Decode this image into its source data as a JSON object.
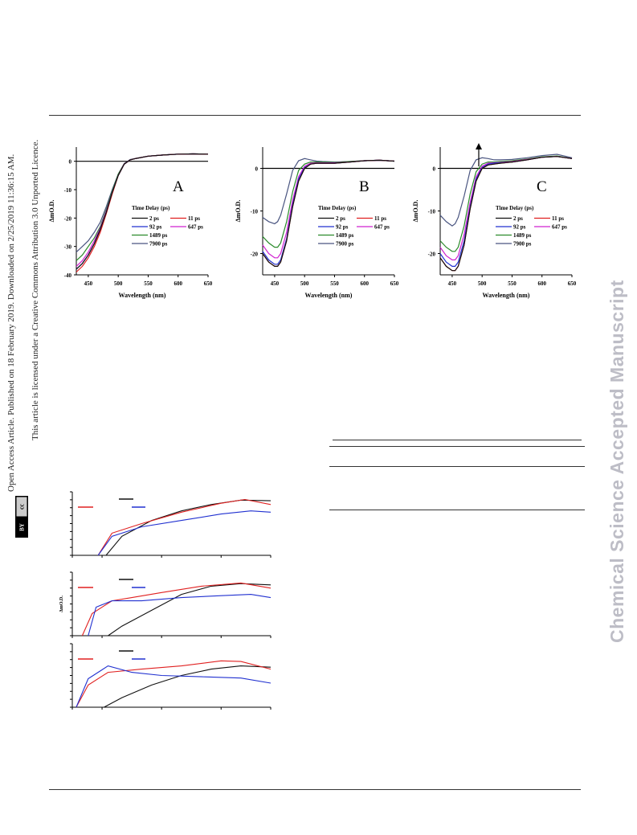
{
  "sidebar": {
    "line1": "Open Access Article. Published on 18 February 2019. Downloaded on 2/25/2019 11:36:15 AM.",
    "line2": "This article is licensed under a Creative Commons Attribution 3.0 Unported Licence.",
    "badge_cc": "cc",
    "badge_by": "BY"
  },
  "watermark": "Chemical Science Accepted Manuscript",
  "spectra_panels": [
    {
      "letter": "A",
      "ylabel": "ΔmO.D.",
      "xlabel": "Wavelength (nm)"
    },
    {
      "letter": "B",
      "ylabel": "ΔmO.D.",
      "xlabel": "Wavelength (nm)"
    },
    {
      "letter": "C",
      "ylabel": "ΔmO.D.",
      "xlabel": "Wavelength (nm)"
    }
  ],
  "legend": {
    "title": "Time Delay (ps)",
    "entries": [
      "2 ps",
      "11 ps",
      "92 ps",
      "647 ps",
      "1489 ps",
      "7900 ps"
    ]
  },
  "kinetics_ylabel": "ΔmO.D.",
  "colors": {
    "2ps": "#111111",
    "11ps": "#e02020",
    "92ps": "#2030d0",
    "647ps": "#d020d0",
    "1489ps": "#2a8a2a",
    "7900ps": "#4a5580",
    "watermark": "#bdbdc6"
  },
  "chart_data": [
    {
      "type": "line",
      "panel": "A",
      "xlabel": "Wavelength (nm)",
      "ylabel": "ΔmO.D.",
      "xlim": [
        430,
        650
      ],
      "ylim": [
        -40,
        5
      ],
      "xticks": [
        450,
        500,
        550,
        600,
        650
      ],
      "yticks": [
        0,
        -10,
        -20,
        -30,
        -40
      ],
      "x": [
        430,
        440,
        450,
        460,
        470,
        480,
        490,
        500,
        510,
        520,
        530,
        550,
        575,
        600,
        625,
        650
      ],
      "series": [
        {
          "name": "2 ps",
          "values": [
            -38,
            -36,
            -33,
            -29,
            -24,
            -18,
            -11,
            -5,
            -1,
            0.5,
            1,
            1.8,
            2.2,
            2.5,
            2.6,
            2.5
          ]
        },
        {
          "name": "11 ps",
          "values": [
            -39,
            -37,
            -34,
            -30,
            -25,
            -18.5,
            -11.5,
            -5,
            -1,
            0.5,
            1,
            1.8,
            2.2,
            2.5,
            2.6,
            2.5
          ]
        },
        {
          "name": "92 ps",
          "values": [
            -38,
            -36,
            -33,
            -29,
            -24,
            -18,
            -11,
            -5,
            -1,
            0.5,
            1,
            1.8,
            2.2,
            2.5,
            2.6,
            2.5
          ]
        },
        {
          "name": "647 ps",
          "values": [
            -37,
            -35,
            -32,
            -28,
            -23.5,
            -17.5,
            -11,
            -5,
            -1,
            0.5,
            1,
            1.8,
            2.2,
            2.5,
            2.6,
            2.5
          ]
        },
        {
          "name": "1489 ps",
          "values": [
            -35,
            -33,
            -30,
            -27,
            -23,
            -17,
            -10.5,
            -4.5,
            -1,
            0.5,
            1,
            1.8,
            2.2,
            2.5,
            2.6,
            2.5
          ]
        },
        {
          "name": "7900 ps",
          "values": [
            -32,
            -30,
            -28,
            -25,
            -21.5,
            -16,
            -10,
            -4.5,
            -0.8,
            0.6,
            1,
            1.8,
            2.2,
            2.5,
            2.6,
            2.5
          ]
        }
      ]
    },
    {
      "type": "line",
      "panel": "B",
      "xlabel": "Wavelength (nm)",
      "ylabel": "ΔmO.D.",
      "xlim": [
        430,
        650
      ],
      "ylim": [
        -25,
        5
      ],
      "xticks": [
        450,
        500,
        550,
        600,
        650
      ],
      "yticks": [
        0,
        -10,
        -20
      ],
      "x": [
        430,
        440,
        450,
        455,
        460,
        470,
        480,
        490,
        500,
        510,
        520,
        530,
        550,
        575,
        600,
        625,
        650
      ],
      "series": [
        {
          "name": "2 ps",
          "values": [
            -20,
            -22,
            -23,
            -23,
            -22,
            -17,
            -9,
            -3,
            0,
            1,
            1.2,
            1.2,
            1.2,
            1.5,
            1.8,
            1.9,
            1.7
          ]
        },
        {
          "name": "11 ps",
          "values": [
            -20,
            -22,
            -23,
            -23,
            -22,
            -17,
            -9,
            -3,
            0,
            1,
            1.2,
            1.2,
            1.2,
            1.5,
            1.8,
            1.9,
            1.7
          ]
        },
        {
          "name": "92 ps",
          "values": [
            -19.5,
            -21.5,
            -22.5,
            -22.5,
            -21.5,
            -16.5,
            -8.5,
            -2.5,
            0.2,
            1,
            1.2,
            1.2,
            1.2,
            1.5,
            1.8,
            1.9,
            1.7
          ]
        },
        {
          "name": "647 ps",
          "values": [
            -18,
            -20,
            -21,
            -21,
            -20,
            -15,
            -7.5,
            -2,
            0.5,
            1.2,
            1.3,
            1.3,
            1.3,
            1.5,
            1.8,
            1.9,
            1.7
          ]
        },
        {
          "name": "1489 ps",
          "values": [
            -16,
            -17.5,
            -18.5,
            -18.5,
            -17.5,
            -12.5,
            -5.5,
            -0.5,
            1,
            1.5,
            1.5,
            1.5,
            1.4,
            1.6,
            1.8,
            1.9,
            1.7
          ]
        },
        {
          "name": "7900 ps",
          "values": [
            -11.5,
            -12.5,
            -13,
            -12.5,
            -11,
            -6,
            -0.5,
            1.8,
            2.3,
            2,
            1.7,
            1.6,
            1.5,
            1.6,
            1.8,
            1.9,
            1.7
          ]
        }
      ]
    },
    {
      "type": "line",
      "panel": "C",
      "xlabel": "Wavelength (nm)",
      "ylabel": "ΔmO.D.",
      "xlim": [
        430,
        650
      ],
      "ylim": [
        -25,
        5
      ],
      "xticks": [
        450,
        500,
        550,
        600,
        650
      ],
      "yticks": [
        0,
        -10,
        -20
      ],
      "annotation": "arrow up",
      "x": [
        430,
        440,
        450,
        455,
        460,
        470,
        480,
        490,
        500,
        510,
        520,
        530,
        550,
        575,
        600,
        625,
        650
      ],
      "series": [
        {
          "name": "2 ps",
          "values": [
            -21,
            -23,
            -24,
            -24,
            -23,
            -18,
            -9.5,
            -3,
            0,
            0.8,
            1,
            1.2,
            1.5,
            2,
            2.6,
            2.8,
            2.3
          ]
        },
        {
          "name": "11 ps",
          "values": [
            -21,
            -23,
            -24,
            -24,
            -23,
            -18,
            -9.5,
            -3,
            0,
            0.8,
            1,
            1.2,
            1.5,
            2,
            2.6,
            2.8,
            2.3
          ]
        },
        {
          "name": "92 ps",
          "values": [
            -20,
            -22,
            -23,
            -23,
            -22,
            -17,
            -9,
            -2.5,
            0.2,
            1,
            1.2,
            1.3,
            1.5,
            2,
            2.6,
            2.8,
            2.3
          ]
        },
        {
          "name": "647 ps",
          "values": [
            -18.5,
            -20.5,
            -21.5,
            -21.5,
            -20.5,
            -15.5,
            -8,
            -2,
            0.5,
            1.2,
            1.3,
            1.4,
            1.6,
            2.1,
            2.6,
            2.8,
            2.3
          ]
        },
        {
          "name": "1489 ps",
          "values": [
            -17,
            -18.5,
            -19.5,
            -19.5,
            -18.5,
            -13.5,
            -6,
            -0.8,
            1,
            1.5,
            1.5,
            1.6,
            1.8,
            2.2,
            2.7,
            2.9,
            2.3
          ]
        },
        {
          "name": "7900 ps",
          "values": [
            -11,
            -12.5,
            -13.5,
            -13,
            -11.5,
            -6.5,
            -0.5,
            2,
            2.5,
            2.3,
            2,
            2,
            2.1,
            2.5,
            3,
            3.3,
            2.5
          ]
        }
      ]
    },
    {
      "type": "line",
      "panel": "kinetics-1",
      "ylabel": "",
      "xlim": [
        0,
        100
      ],
      "ylim": [
        0,
        10
      ],
      "series": [
        {
          "name": "",
          "x": [
            17,
            25,
            40,
            55,
            70,
            85,
            100
          ],
          "values": [
            0,
            3,
            5.5,
            7,
            8,
            8.7,
            8.6
          ]
        },
        {
          "name": "",
          "x": [
            13,
            20,
            35,
            55,
            75,
            87,
            100
          ],
          "values": [
            0,
            3.5,
            5,
            6.8,
            8.2,
            8.8,
            8
          ]
        },
        {
          "name": "",
          "x": [
            13,
            20,
            35,
            55,
            75,
            90,
            100
          ],
          "values": [
            0,
            3,
            4.5,
            5.5,
            6.5,
            7,
            6.8
          ]
        }
      ]
    },
    {
      "type": "line",
      "panel": "kinetics-2",
      "ylabel": "ΔmO.D.",
      "xlim": [
        0,
        100
      ],
      "ylim": [
        0,
        10
      ],
      "series": [
        {
          "name": "",
          "x": [
            18,
            25,
            40,
            55,
            70,
            85,
            100
          ],
          "values": [
            0,
            1.5,
            4,
            6.5,
            7.8,
            8.2,
            8
          ]
        },
        {
          "name": "",
          "x": [
            5,
            10,
            20,
            30,
            45,
            65,
            85,
            100
          ],
          "values": [
            0,
            3.5,
            5.5,
            6,
            6.8,
            7.8,
            8.3,
            7.5
          ]
        },
        {
          "name": "",
          "x": [
            8,
            12,
            20,
            35,
            55,
            75,
            90,
            100
          ],
          "values": [
            0,
            4.5,
            5.5,
            5.5,
            6,
            6.3,
            6.5,
            6
          ]
        }
      ]
    },
    {
      "type": "line",
      "panel": "kinetics-3",
      "ylabel": "",
      "xlim": [
        0,
        100
      ],
      "ylim": [
        0,
        10
      ],
      "series": [
        {
          "name": "",
          "x": [
            16,
            25,
            40,
            55,
            70,
            85,
            100
          ],
          "values": [
            0,
            1.5,
            3.5,
            5,
            6,
            6.5,
            6.3
          ]
        },
        {
          "name": "",
          "x": [
            2,
            8,
            18,
            35,
            55,
            75,
            85,
            100
          ],
          "values": [
            0,
            3.5,
            5.5,
            6,
            6.5,
            7.3,
            7.2,
            6
          ]
        },
        {
          "name": "",
          "x": [
            2,
            8,
            18,
            30,
            45,
            65,
            85,
            100
          ],
          "values": [
            0,
            4.5,
            6.5,
            5.5,
            5,
            4.8,
            4.6,
            3.8
          ]
        }
      ]
    }
  ]
}
